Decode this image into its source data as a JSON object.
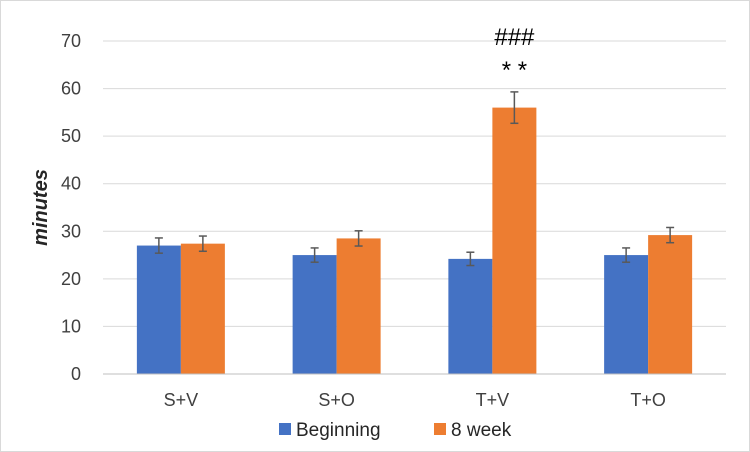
{
  "chart_data": {
    "type": "bar",
    "title": "",
    "xlabel": "",
    "ylabel": "minutes",
    "ylim": [
      0,
      70
    ],
    "yticks": [
      0,
      10,
      20,
      30,
      40,
      50,
      60,
      70
    ],
    "grid": true,
    "legend_position": "bottom",
    "categories": [
      "S+V",
      "S+O",
      "T+V",
      "T+O"
    ],
    "series": [
      {
        "name": "Beginning",
        "color": "#4472c4",
        "values": [
          27.0,
          25.0,
          24.2,
          25.0
        ],
        "errors": [
          1.6,
          1.5,
          1.4,
          1.5
        ]
      },
      {
        "name": "8 week",
        "color": "#ed7d31",
        "values": [
          27.4,
          28.5,
          56.0,
          29.2
        ],
        "errors": [
          1.6,
          1.6,
          3.3,
          1.6
        ]
      }
    ],
    "annotations": [
      {
        "category": "T+V",
        "series": "8 week",
        "lines": [
          "###",
          "* *"
        ]
      }
    ]
  }
}
